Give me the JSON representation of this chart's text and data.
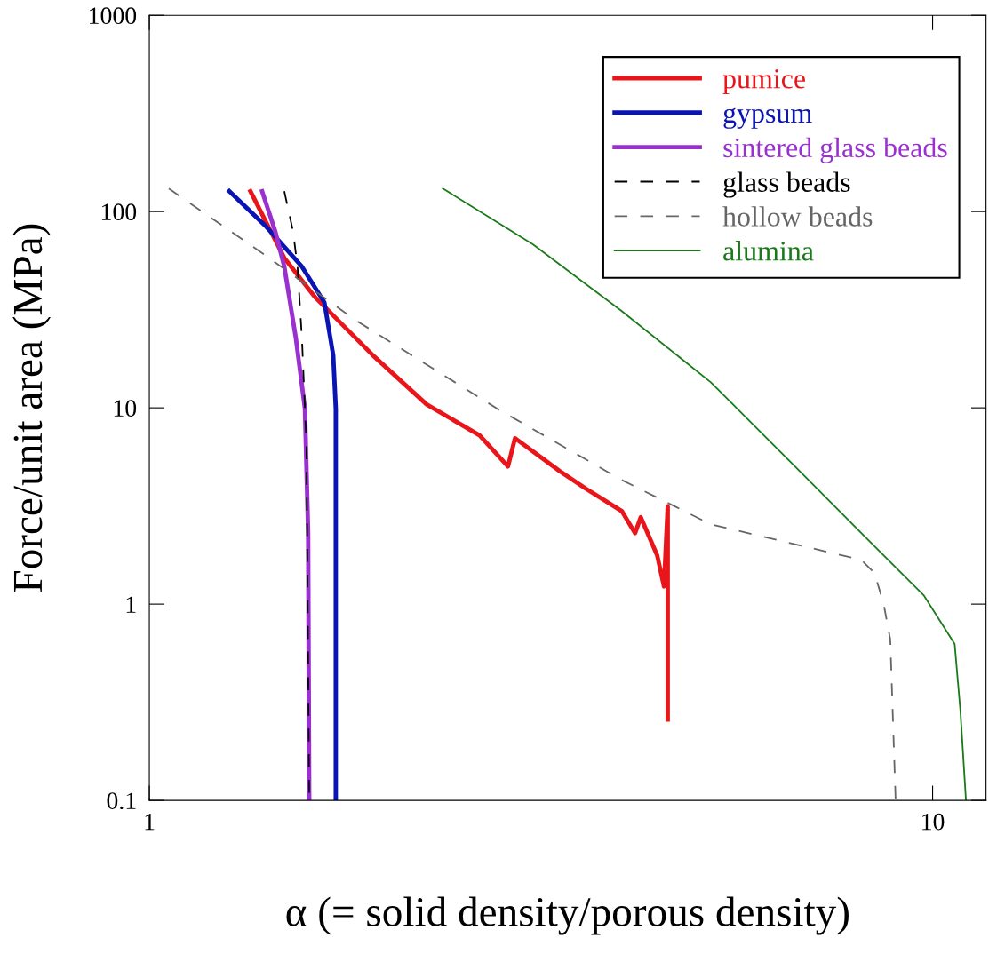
{
  "chart_data": {
    "type": "line",
    "xlabel": "α (= solid density/porous density)",
    "ylabel": "Force/unit area (MPa)",
    "log": "xy",
    "xlim": [
      1,
      11.7
    ],
    "ylim": [
      0.1,
      1000
    ],
    "xticks": [
      1,
      10
    ],
    "yticks": [
      0.1,
      1,
      10,
      100,
      1000
    ],
    "grid": false,
    "legend": "top right",
    "marker": "none",
    "series": [
      {
        "name": "pumice",
        "color": "#e8161b",
        "line_style": "solid",
        "x": [
          1.346,
          1.487,
          1.63,
          1.93,
          2.26,
          2.64,
          2.87,
          2.93,
          3.34,
          3.61,
          4.01,
          4.17,
          4.24,
          4.45,
          4.54,
          4.59,
          4.59
        ],
        "values": [
          127,
          58,
          36.4,
          18.5,
          10.4,
          7.24,
          5.03,
          7.0,
          4.77,
          3.87,
          2.98,
          2.3,
          2.77,
          1.77,
          1.23,
          3.15,
          0.258
        ]
      },
      {
        "name": "gypsum",
        "color": "#0a14b4",
        "line_style": "solid",
        "x": [
          1.265,
          1.41,
          1.566,
          1.673,
          1.717,
          1.73,
          1.73,
          1.73
        ],
        "values": [
          127,
          83.8,
          52.4,
          34.4,
          18.5,
          9.9,
          2.3,
          0.1
        ]
      },
      {
        "name": "sintered glass beads",
        "color": "#9b30d0",
        "line_style": "solid",
        "x": [
          1.393,
          1.448,
          1.487,
          1.538,
          1.58,
          1.595,
          1.6
        ],
        "values": [
          127,
          79.3,
          52.4,
          22.8,
          9.9,
          2.3,
          0.1
        ]
      },
      {
        "name": "glass beads",
        "color": "#000000",
        "line_style": "dashed",
        "x": [
          1.487,
          1.526,
          1.546,
          1.566,
          1.587,
          1.6
        ],
        "values": [
          127,
          79,
          52,
          22.8,
          6.5,
          0.1
        ]
      },
      {
        "name": "hollow beads",
        "color": "#666666",
        "line_style": "dashed",
        "x": [
          1.059,
          1.41,
          1.83,
          2.78,
          4.01,
          5.21,
          8.11,
          8.43,
          8.66,
          8.83,
          8.97
        ],
        "values": [
          131,
          59.4,
          28.1,
          9.9,
          4.29,
          2.55,
          1.68,
          1.44,
          1.0,
          0.66,
          0.1
        ]
      },
      {
        "name": "alumina",
        "color": "#1a7a1a",
        "line_style": "solid",
        "x": [
          2.37,
          3.09,
          4.01,
          5.21,
          6.76,
          8.11,
          9.74,
          10.67,
          10.85,
          11.03
        ],
        "values": [
          131,
          68,
          31.1,
          13.5,
          4.77,
          2.3,
          1.11,
          0.626,
          0.287,
          0.1
        ]
      }
    ]
  }
}
